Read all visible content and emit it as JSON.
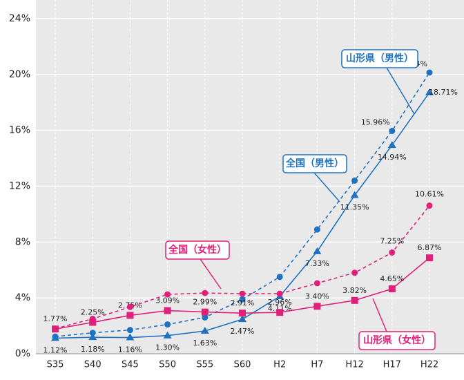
{
  "chart_data": {
    "type": "line",
    "categories": [
      "S35",
      "S40",
      "S45",
      "S50",
      "S55",
      "S60",
      "H2",
      "H7",
      "H12",
      "H17",
      "H22"
    ],
    "ylim": [
      0,
      24
    ],
    "yticks": [
      {
        "value": 0,
        "label": "0%"
      },
      {
        "value": 4,
        "label": "4%"
      },
      {
        "value": 8,
        "label": "8%"
      },
      {
        "value": 12,
        "label": "12%"
      },
      {
        "value": 16,
        "label": "16%"
      },
      {
        "value": 20,
        "label": "20%"
      },
      {
        "value": 24,
        "label": "24%"
      }
    ],
    "grid": true,
    "series": [
      {
        "name": "山形県（男性）",
        "color": "#1f72bf",
        "dashed": false,
        "marker": "triangle",
        "values": [
          1.12,
          1.18,
          1.16,
          1.3,
          1.63,
          2.47,
          4.11,
          7.33,
          11.35,
          14.94,
          18.71
        ],
        "value_labels": [
          "1.12%",
          "1.18%",
          "1.16%",
          "1.30%",
          "1.63%",
          "2.47%",
          "4.11%",
          "7.33%",
          "11.35%",
          "14.94%",
          "18.71%"
        ]
      },
      {
        "name": "全国（男性）",
        "color": "#1f72bf",
        "dashed": true,
        "marker": "circle",
        "values": [
          1.23,
          1.5,
          1.7,
          2.1,
          2.6,
          3.9,
          5.5,
          8.9,
          12.4,
          15.96,
          20.14
        ],
        "value_labels": [
          null,
          null,
          null,
          null,
          null,
          null,
          null,
          null,
          null,
          "15.96%",
          "20.14%"
        ]
      },
      {
        "name": "山形県（女性）",
        "color": "#e0207a",
        "dashed": false,
        "marker": "square",
        "values": [
          1.77,
          2.25,
          2.75,
          3.09,
          2.99,
          2.91,
          2.96,
          3.4,
          3.82,
          4.65,
          6.87
        ],
        "value_labels": [
          "1.77%",
          "2.25%",
          "2.75%",
          "3.09%",
          "2.99%",
          "2.91%",
          "2.96%",
          "3.40%",
          "3.82%",
          "4.65%",
          "6.87%"
        ]
      },
      {
        "name": "全国（女性）",
        "color": "#e0207a",
        "dashed": true,
        "marker": "circle",
        "values": [
          1.8,
          2.5,
          3.35,
          4.25,
          4.35,
          4.3,
          4.3,
          5.05,
          5.8,
          7.25,
          10.61
        ],
        "value_labels": [
          null,
          null,
          null,
          null,
          null,
          null,
          null,
          null,
          null,
          "7.25%",
          "10.61%"
        ]
      }
    ]
  }
}
